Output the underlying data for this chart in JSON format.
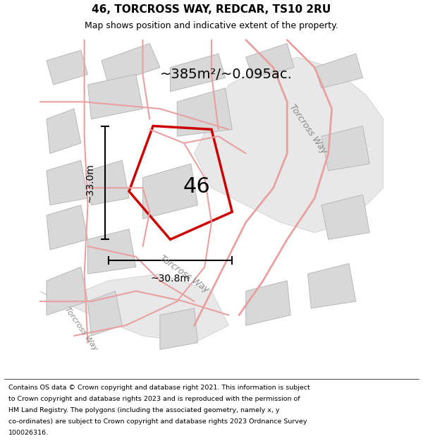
{
  "title": "46, TORCROSS WAY, REDCAR, TS10 2RU",
  "subtitle": "Map shows position and indicative extent of the property.",
  "area_label": "~385m²/~0.095ac.",
  "plot_number": "46",
  "dim_vertical": "~33.0m",
  "dim_horizontal": "~30.8m",
  "bg_color": "#f0f0f0",
  "pink_road_color": "#e8a0a0",
  "red_plot_color": "#cc0000",
  "footer_lines": [
    "Contains OS data © Crown copyright and database right 2021. This information is subject",
    "to Crown copyright and database rights 2023 and is reproduced with the permission of",
    "HM Land Registry. The polygons (including the associated geometry, namely x, y",
    "co-ordinates) are subject to Crown copyright and database rights 2023 Ordnance Survey",
    "100026316."
  ],
  "street_label_1": "Torcross Way",
  "street_label_2": "Torcross Way",
  "street_label_3": "Torcross Way",
  "fig_width": 6.0,
  "fig_height": 6.25
}
